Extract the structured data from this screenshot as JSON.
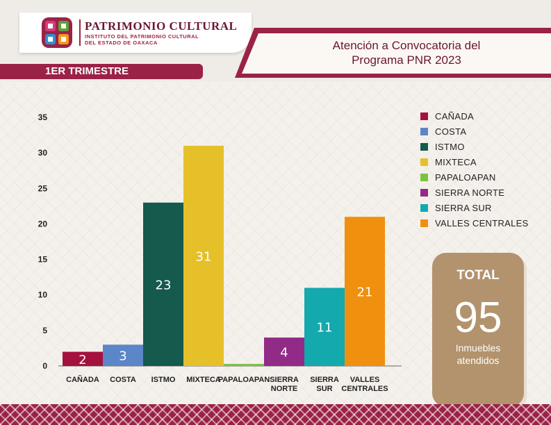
{
  "logo": {
    "title": "PATRIMONIO CULTURAL",
    "subtitle_line1": "INSTITUTO DEL PATRIMONIO CULTURAL",
    "subtitle_line2": "DEL ESTADO DE OAXACA",
    "colors": [
      "#9b2247",
      "#d93a7c",
      "#5aa13a",
      "#2f8fd0",
      "#f39a1e"
    ]
  },
  "header": {
    "title_line1": "Atención a Convocatoria del",
    "title_line2": "Programa PNR 2023",
    "period": "1ER TRIMESTRE"
  },
  "chart_data": {
    "type": "bar",
    "categories": [
      "CAÑADA",
      "COSTA",
      "ISTMO",
      "MIXTECA",
      "PAPALOAPAN",
      "SIERRA NORTE",
      "SIERRA SUR",
      "VALLES CENTRALES"
    ],
    "category_labels": [
      [
        "CAÑADA"
      ],
      [
        "COSTA"
      ],
      [
        "ISTMO"
      ],
      [
        "MIXTECA"
      ],
      [
        "PAPALOAPAN"
      ],
      [
        "SIERRA",
        "NORTE"
      ],
      [
        "SIERRA",
        "SUR"
      ],
      [
        "VALLES",
        "CENTRALES"
      ]
    ],
    "values": [
      2,
      3,
      23,
      31,
      0,
      4,
      11,
      21
    ],
    "data_labels": [
      "2",
      "3",
      "23",
      "31",
      "",
      "4",
      "11",
      "21"
    ],
    "colors": [
      "#a5113f",
      "#5b86c8",
      "#155a4c",
      "#e6c029",
      "#7cc242",
      "#922a88",
      "#13a9ad",
      "#f0900f"
    ],
    "yticks": [
      0,
      5,
      10,
      15,
      20,
      25,
      30,
      35
    ],
    "ylim": [
      0,
      35
    ],
    "legend_position": "right",
    "grid": false,
    "title": "",
    "xlabel": "",
    "ylabel": ""
  },
  "legend": {
    "items": [
      {
        "label": "CAÑADA",
        "color": "#a5113f"
      },
      {
        "label": "COSTA",
        "color": "#5b86c8"
      },
      {
        "label": "ISTMO",
        "color": "#155a4c"
      },
      {
        "label": "MIXTECA",
        "color": "#e6c029"
      },
      {
        "label": "PAPALOAPAN",
        "color": "#7cc242"
      },
      {
        "label": "SIERRA NORTE",
        "color": "#922a88"
      },
      {
        "label": "SIERRA SUR",
        "color": "#13a9ad"
      },
      {
        "label": "VALLES CENTRALES",
        "color": "#f0900f"
      }
    ]
  },
  "total": {
    "label": "TOTAL",
    "value": "95",
    "sub_line1": "Inmuebles",
    "sub_line2": "atendidos"
  }
}
